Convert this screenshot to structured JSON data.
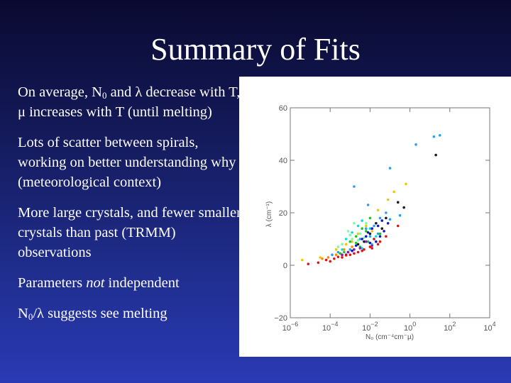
{
  "slide": {
    "title": "Summary of Fits",
    "bullets": [
      {
        "pre": "On average, N",
        "sub": "0",
        "post": " and λ decrease with T, μ increases with T (until melting)"
      },
      {
        "pre": "Lots of scatter between spirals, working on better understanding why (meteorological context)",
        "sub": "",
        "post": ""
      },
      {
        "pre": "More large crystals, and fewer smaller crystals than past (TRMM) observations",
        "sub": "",
        "post": ""
      },
      {
        "pre": "Parameters ",
        "em": "not",
        "post": " independent"
      },
      {
        "pre": "N",
        "sub": "0",
        "post": "/λ suggests see melting"
      }
    ]
  },
  "chart_data": {
    "type": "scatter",
    "title": "",
    "xlabel": "N₀ (cm⁻⁴cm⁻µ)",
    "ylabel": "λ (cm⁻¹)",
    "xscale": "log",
    "xlim": [
      -6,
      4
    ],
    "ylim": [
      -20,
      60
    ],
    "xticks": [
      {
        "v": -6,
        "base": "10",
        "exp": "−6"
      },
      {
        "v": -4,
        "base": "10",
        "exp": "−4"
      },
      {
        "v": -2,
        "base": "10",
        "exp": "−2"
      },
      {
        "v": 0,
        "base": "10",
        "exp": "0"
      },
      {
        "v": 2,
        "base": "10",
        "exp": "2"
      },
      {
        "v": 4,
        "base": "10",
        "exp": "4"
      }
    ],
    "yticks": [
      {
        "v": -20,
        "label": "−20"
      },
      {
        "v": 0,
        "label": "0"
      },
      {
        "v": 20,
        "label": "20"
      },
      {
        "v": 40,
        "label": "40"
      },
      {
        "v": 60,
        "label": "60"
      }
    ],
    "series": [
      {
        "color": "#2a9df4",
        "points": [
          [
            1.5,
            49.5
          ],
          [
            1.2,
            49
          ],
          [
            0.3,
            46
          ],
          [
            -1.0,
            37
          ],
          [
            -2.8,
            30
          ],
          [
            -2.1,
            23
          ],
          [
            -1.5,
            18
          ],
          [
            -0.5,
            19
          ],
          [
            -1.0,
            17.5
          ],
          [
            -2.2,
            14
          ],
          [
            -1.6,
            12
          ],
          [
            -2.5,
            10
          ],
          [
            -3.6,
            5
          ],
          [
            -3.0,
            6
          ],
          [
            -3.9,
            4
          ],
          [
            -2.0,
            11
          ],
          [
            -1.8,
            15
          ],
          [
            -1.2,
            20
          ]
        ]
      },
      {
        "color": "#1a1a1a",
        "points": [
          [
            1.3,
            42
          ],
          [
            -0.3,
            22
          ],
          [
            -0.6,
            24
          ],
          [
            -1.2,
            18
          ],
          [
            -1.7,
            16
          ],
          [
            -2.0,
            12
          ],
          [
            -2.3,
            9
          ],
          [
            -2.6,
            8
          ],
          [
            -3.1,
            5
          ],
          [
            -1.4,
            14
          ]
        ]
      },
      {
        "color": "#f5c400",
        "points": [
          [
            -0.2,
            31
          ],
          [
            -0.8,
            28
          ],
          [
            -1.1,
            25
          ],
          [
            -1.6,
            21
          ],
          [
            -2.2,
            15
          ],
          [
            -2.6,
            12
          ],
          [
            -3.2,
            8
          ],
          [
            -3.7,
            6
          ],
          [
            -4.5,
            3
          ],
          [
            -5.4,
            2
          ],
          [
            -3.4,
            3.8
          ],
          [
            -2.9,
            9
          ],
          [
            -1.9,
            13
          ]
        ]
      },
      {
        "color": "#22c022",
        "points": [
          [
            -2.0,
            18
          ],
          [
            -2.4,
            14
          ],
          [
            -2.7,
            11
          ],
          [
            -3.0,
            9
          ],
          [
            -2.2,
            13
          ],
          [
            -1.8,
            10
          ],
          [
            -2.5,
            7
          ],
          [
            -3.3,
            5
          ],
          [
            -2.1,
            9
          ],
          [
            -2.7,
            8.5
          ],
          [
            -1.5,
            12
          ],
          [
            -3.5,
            4.5
          ],
          [
            -2.8,
            6
          ]
        ]
      },
      {
        "color": "#7cfc9c",
        "points": [
          [
            -2.8,
            16
          ],
          [
            -3.1,
            13
          ],
          [
            -2.5,
            12
          ],
          [
            -2.9,
            10
          ],
          [
            -3.4,
            8
          ],
          [
            -2.2,
            16
          ],
          [
            -3.0,
            11.5
          ],
          [
            -2.6,
            9.5
          ],
          [
            -3.6,
            7
          ],
          [
            -2.3,
            10.5
          ]
        ]
      },
      {
        "color": "#00e0e0",
        "points": [
          [
            -2.4,
            17
          ],
          [
            -2.6,
            15
          ],
          [
            -2.0,
            14
          ],
          [
            -1.7,
            11
          ],
          [
            -2.9,
            12.5
          ],
          [
            -3.2,
            10
          ],
          [
            -1.9,
            8
          ],
          [
            -2.4,
            6.5
          ],
          [
            -3.4,
            6
          ]
        ]
      },
      {
        "color": "#1414c8",
        "points": [
          [
            -1.6,
            15
          ],
          [
            -1.9,
            14
          ],
          [
            -2.1,
            12.5
          ],
          [
            -1.3,
            13
          ],
          [
            -2.4,
            10
          ],
          [
            -1.7,
            9
          ],
          [
            -2.7,
            7.5
          ],
          [
            -1.5,
            11
          ],
          [
            -2.0,
            8.5
          ],
          [
            -2.9,
            5.5
          ],
          [
            -1.1,
            16
          ],
          [
            -2.2,
            11
          ],
          [
            -1.4,
            17
          ],
          [
            -3.2,
            4
          ]
        ]
      },
      {
        "color": "#e01414",
        "points": [
          [
            -1.8,
            10
          ],
          [
            -2.0,
            7
          ],
          [
            -2.3,
            6
          ],
          [
            -2.6,
            5
          ],
          [
            -3.0,
            4
          ],
          [
            -3.4,
            3
          ],
          [
            -3.8,
            2.5
          ],
          [
            -4.2,
            2
          ],
          [
            -4.6,
            1
          ],
          [
            -5.1,
            0.5
          ],
          [
            -1.5,
            9
          ],
          [
            -1.2,
            11
          ],
          [
            -2.8,
            4.5
          ],
          [
            -3.6,
            3.2
          ],
          [
            -2.4,
            5.5
          ],
          [
            -1.6,
            8
          ],
          [
            -3.2,
            3.8
          ],
          [
            -4.0,
            1.5
          ],
          [
            -0.6,
            15
          ],
          [
            -1.9,
            6.5
          ]
        ]
      },
      {
        "color": "#8a1ab8",
        "points": [
          [
            -2.2,
            9
          ],
          [
            -2.5,
            6.5
          ],
          [
            -2.8,
            6
          ],
          [
            -3.1,
            5
          ],
          [
            -1.9,
            7.5
          ],
          [
            -3.4,
            4
          ]
        ]
      },
      {
        "color": "#ff8a00",
        "points": [
          [
            -3.3,
            6
          ],
          [
            -3.7,
            4
          ],
          [
            -4.1,
            3
          ],
          [
            -2.9,
            7
          ],
          [
            -4.4,
            2.5
          ]
        ]
      }
    ]
  }
}
